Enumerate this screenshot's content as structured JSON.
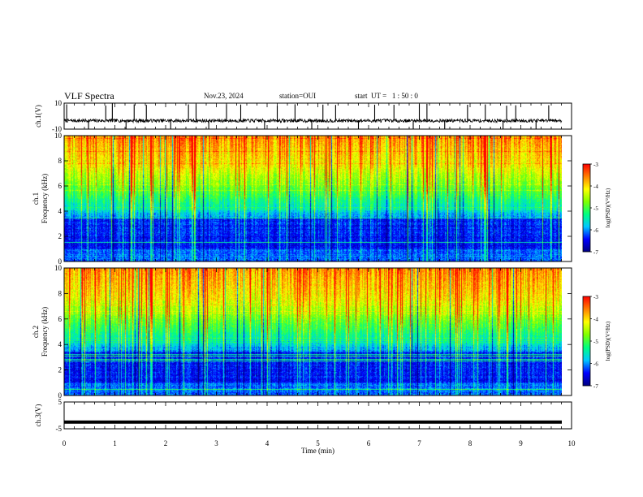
{
  "header": {
    "title": "VLF Spectra",
    "date": "Nov.23, 2024",
    "station": "station=OUI",
    "start_ut": "start  UT =   1 : 50 : 0"
  },
  "colors": {
    "colormap": [
      "#000080",
      "#0000ff",
      "#00c8ff",
      "#00ff80",
      "#80ff00",
      "#ffff00",
      "#ff8000",
      "#ff0000"
    ]
  },
  "chart_data": [
    {
      "id": "ch1-waveform",
      "type": "line",
      "ylabel": "ch.1(V)",
      "ylim": [
        -10,
        10
      ],
      "yticks": [
        "10",
        "-10"
      ],
      "xlim": [
        0,
        10
      ],
      "baseline": -3.5,
      "spike_times": [
        0.05,
        0.48,
        0.82,
        0.95,
        1.22,
        1.38,
        1.62,
        2.1,
        2.45,
        2.6,
        2.85,
        3.2,
        3.48,
        3.95,
        4.2,
        4.55,
        4.88,
        5.1,
        5.35,
        5.8,
        6.12,
        6.5,
        6.88,
        7.0,
        7.15,
        7.5,
        7.95,
        8.3,
        8.65,
        8.72,
        8.9,
        9.3,
        9.55
      ]
    },
    {
      "id": "ch1-spectrogram",
      "type": "heatmap",
      "title": "ch.1",
      "ylabel": "Frequency (kHz)",
      "ylim": [
        0,
        10
      ],
      "yticks": [
        "0",
        "2",
        "4",
        "6",
        "8",
        "10"
      ],
      "xlim": [
        0,
        10
      ],
      "colorbar": {
        "label": "log(PSD)(V²/Hz)",
        "range": [
          -7,
          -3
        ],
        "ticks": [
          "-3",
          "-4",
          "-5",
          "-6",
          "-7"
        ]
      }
    },
    {
      "id": "ch2-spectrogram",
      "type": "heatmap",
      "title": "ch.2",
      "ylabel": "Frequency (kHz)",
      "ylim": [
        0,
        10
      ],
      "yticks": [
        "0",
        "2",
        "4",
        "6",
        "8",
        "10"
      ],
      "xlim": [
        0,
        10
      ],
      "colorbar": {
        "label": "log(PSD)(V²/Hz)",
        "range": [
          -7,
          -3
        ],
        "ticks": [
          "-3",
          "-4",
          "-5",
          "-6",
          "-7"
        ]
      }
    },
    {
      "id": "ch3-waveform",
      "type": "line",
      "ylabel": "ch.3(V)",
      "ylim": [
        -5,
        5
      ],
      "yticks": [
        "5",
        "-5"
      ],
      "xlim": [
        0,
        10
      ],
      "baseline": -2.5
    },
    {
      "id": "time-axis",
      "type": "axis",
      "xlabel": "Time  (min)",
      "xlim": [
        0,
        10
      ],
      "xticks": [
        "0",
        "1",
        "2",
        "3",
        "4",
        "5",
        "6",
        "7",
        "8",
        "9",
        "10"
      ]
    }
  ]
}
